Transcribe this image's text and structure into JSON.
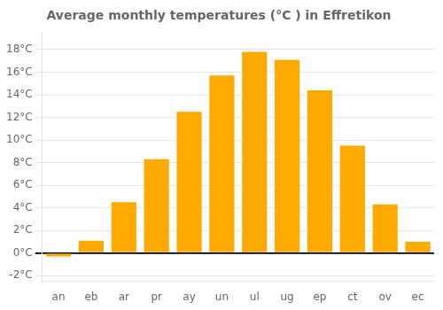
{
  "chart_data": {
    "type": "bar",
    "title": "Average monthly temperatures (°C ) in Effretikon",
    "categories": [
      "an",
      "eb",
      "ar",
      "pr",
      "ay",
      "un",
      "ul",
      "ug",
      "ep",
      "ct",
      "ov",
      "ec"
    ],
    "values": [
      -0.3,
      1.1,
      4.5,
      8.3,
      12.5,
      15.7,
      17.8,
      17.1,
      14.4,
      9.5,
      4.3,
      1.0
    ],
    "color": "#FFAA00",
    "ylim": [
      -2.5,
      19.5
    ],
    "yticks": [
      {
        "value": -2,
        "label": "-2°C"
      },
      {
        "value": 0,
        "label": "0°C"
      },
      {
        "value": 2,
        "label": "2°C"
      },
      {
        "value": 4,
        "label": "4°C"
      },
      {
        "value": 6,
        "label": "6°C"
      },
      {
        "value": 8,
        "label": "8°C"
      },
      {
        "value": 10,
        "label": "10°C"
      },
      {
        "value": 12,
        "label": "12°C"
      },
      {
        "value": 14,
        "label": "14°C"
      },
      {
        "value": 16,
        "label": "16°C"
      },
      {
        "value": 18,
        "label": "18°C"
      }
    ],
    "grid": true
  }
}
